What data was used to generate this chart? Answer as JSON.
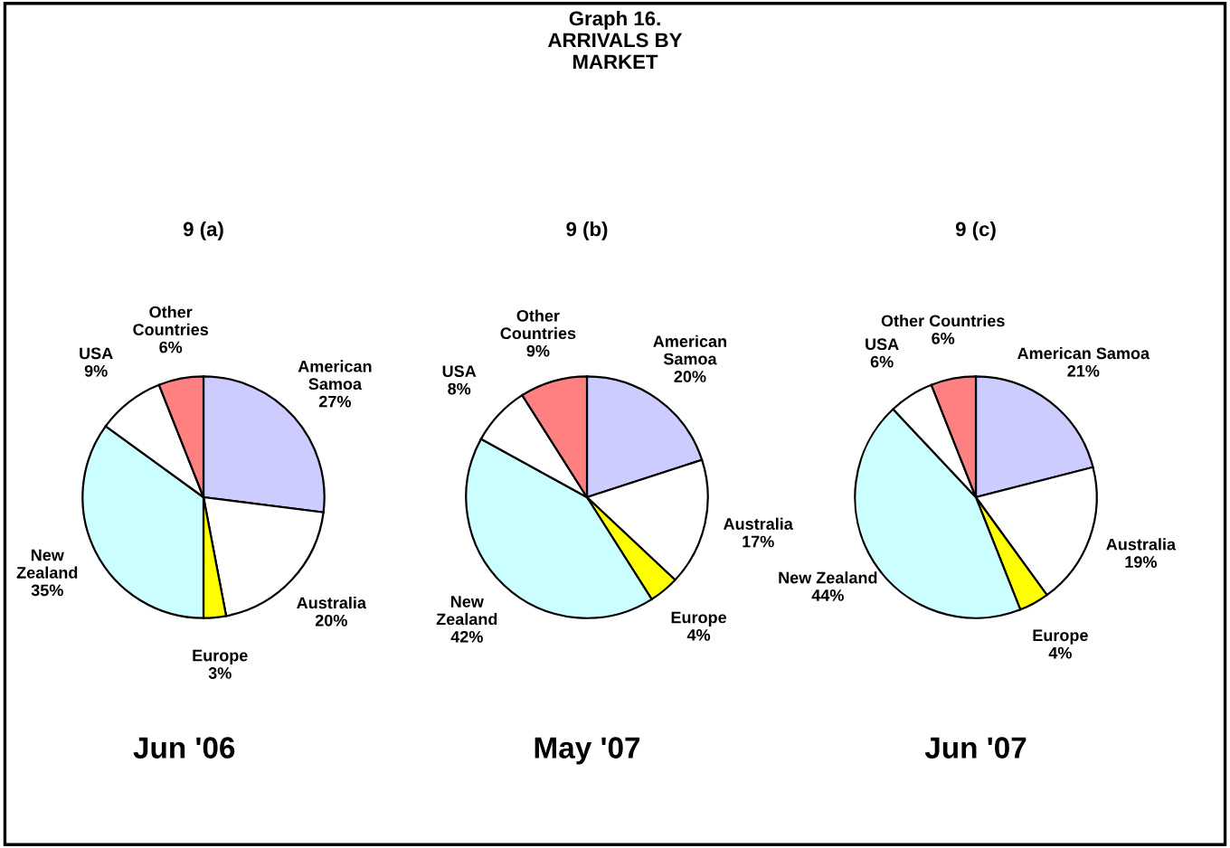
{
  "chart_data": [
    {
      "type": "pie",
      "title": "9 (a)",
      "annotations": [
        "Graph 16.\nARRIVALS BY\nMARKET",
        "Jun '06"
      ],
      "categories": [
        "American\nSamoa",
        "Australia",
        "Europe",
        "New\nZealand",
        "USA",
        "Other\nCountries"
      ],
      "values": [
        27,
        20,
        3,
        35,
        9,
        6
      ],
      "value_labels": [
        "27%",
        "20%",
        "3%",
        "35%",
        "9%",
        "6%"
      ],
      "colors": [
        "#ccccff",
        "#ffffff",
        "#ffff00",
        "#ccffff",
        "#ffffff",
        "#ff8080"
      ]
    },
    {
      "type": "pie",
      "title": "9 (b)",
      "annotations": [
        "May '07"
      ],
      "categories": [
        "American\nSamoa",
        "Australia",
        "Europe",
        "New\nZealand",
        "USA",
        "Other\nCountries"
      ],
      "values": [
        20,
        17,
        4,
        42,
        8,
        9
      ],
      "value_labels": [
        "20%",
        "17%",
        "4%",
        "42%",
        "8%",
        "9%"
      ],
      "colors": [
        "#ccccff",
        "#ffffff",
        "#ffff00",
        "#ccffff",
        "#ffffff",
        "#ff8080"
      ]
    },
    {
      "type": "pie",
      "title": "9 (c)",
      "annotations": [
        "Jun '07"
      ],
      "categories": [
        "American Samoa",
        "Australia",
        "Europe",
        "New Zealand",
        "USA",
        "Other Countries"
      ],
      "values": [
        21,
        19,
        4,
        44,
        6,
        6
      ],
      "value_labels": [
        "21%",
        "19%",
        "4%",
        "44%",
        "6%",
        "6%"
      ],
      "colors": [
        "#ccccff",
        "#ffffff",
        "#ffff00",
        "#ccffff",
        "#ffffff",
        "#ff8080"
      ]
    }
  ]
}
